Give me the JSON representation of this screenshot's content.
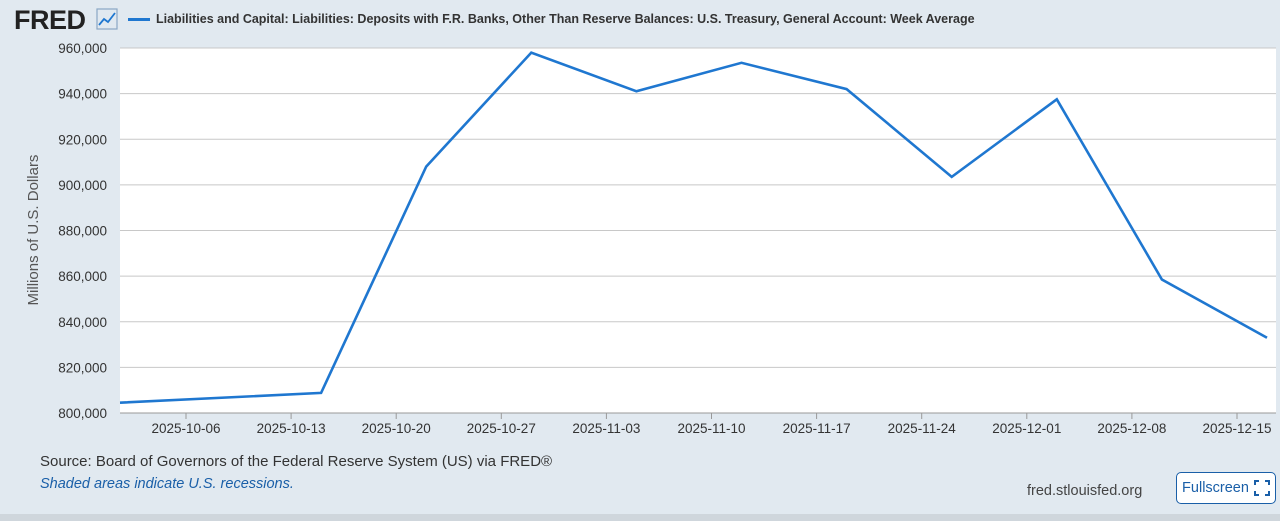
{
  "header": {
    "logo": "FRED",
    "logo_icon": "line-chart-icon",
    "series_title": "Liabilities and Capital: Liabilities: Deposits with F.R. Banks, Other Than Reserve Balances: U.S. Treasury, General Account: Week Average"
  },
  "footer": {
    "source": "Source: Board of Governors of the Federal Reserve System (US) via FRED®",
    "recession_note": "Shaded areas indicate U.S. recessions.",
    "site": "fred.stlouisfed.org",
    "fullscreen_label": "Fullscreen",
    "fullscreen_icon": "fullscreen-icon"
  },
  "colors": {
    "series": "#1f77d0",
    "grid": "#c8c8c8",
    "plot_bg": "#ffffff",
    "page_bg": "#e1e9f0"
  },
  "chart_data": {
    "type": "line",
    "title": "Liabilities and Capital: Liabilities: Deposits with F.R. Banks, Other Than Reserve Balances: U.S. Treasury, General Account: Week Average",
    "ylabel": "Millions of U.S. Dollars",
    "xlabel": "",
    "x": [
      "2025-10-01",
      "2025-10-15",
      "2025-10-22",
      "2025-10-29",
      "2025-11-05",
      "2025-11-12",
      "2025-11-19",
      "2025-11-26",
      "2025-12-03",
      "2025-12-10",
      "2025-12-17"
    ],
    "series": [
      {
        "name": "",
        "values": [
          804500,
          808800,
          908000,
          958000,
          941000,
          953500,
          942000,
          903500,
          937500,
          858500,
          833000
        ]
      }
    ],
    "ylim": [
      800000,
      960000
    ],
    "yticks": [
      800000,
      820000,
      840000,
      860000,
      880000,
      900000,
      920000,
      940000,
      960000
    ],
    "ytick_labels": [
      "800,000",
      "820,000",
      "840,000",
      "860,000",
      "880,000",
      "900,000",
      "920,000",
      "940,000",
      "960,000"
    ],
    "xticks": [
      "2025-10-06",
      "2025-10-13",
      "2025-10-20",
      "2025-10-27",
      "2025-11-03",
      "2025-11-10",
      "2025-11-17",
      "2025-11-24",
      "2025-12-01",
      "2025-12-08",
      "2025-12-15"
    ],
    "grid": true,
    "legend": "top"
  }
}
